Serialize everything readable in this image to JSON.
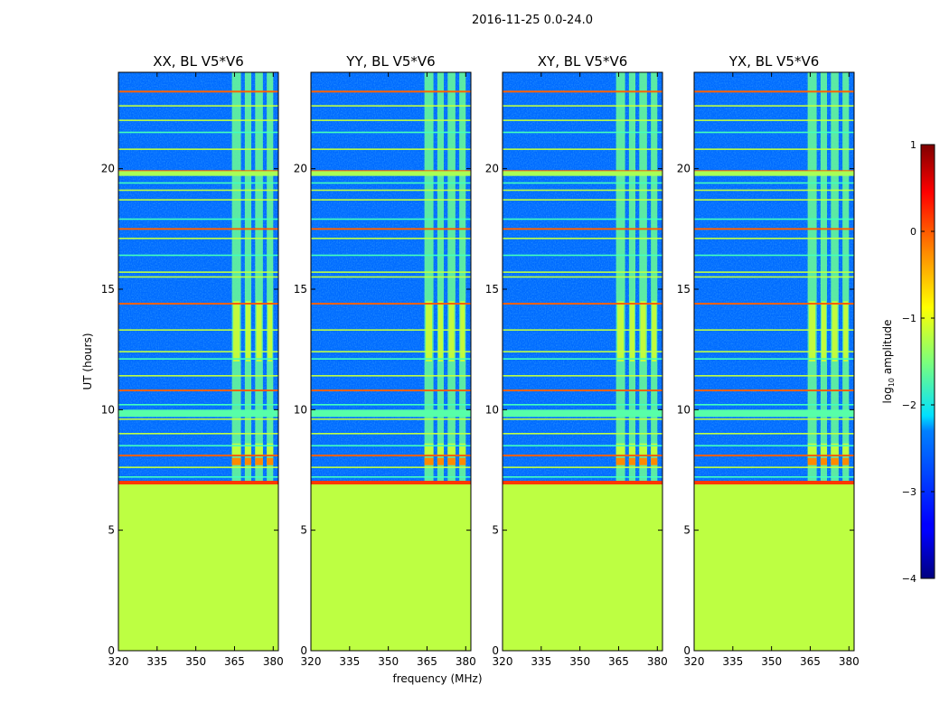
{
  "suptitle": "2016-11-25 0.0-24.0",
  "chart_data": {
    "type": "heatmap",
    "suptitle": "2016-11-25 0.0-24.0",
    "xlabel": "frequency (MHz)",
    "ylabel": "UT (hours)",
    "xlim": [
      320,
      382
    ],
    "ylim": [
      0,
      24
    ],
    "xticks": [
      320,
      335,
      350,
      365,
      380
    ],
    "yticks": [
      0,
      5,
      10,
      15,
      20
    ],
    "data_start_hour": 6.9,
    "fill_value_below_start": -1.2,
    "background_level": -2.85,
    "band_columns_mhz": [
      [
        364,
        367.5
      ],
      [
        369,
        371.5
      ],
      [
        373,
        376
      ],
      [
        377.5,
        380
      ]
    ],
    "hline_hours": [
      7.2,
      7.6,
      8.1,
      8.5,
      9.0,
      9.6,
      10.2,
      10.8,
      11.4,
      12.1,
      12.4,
      13.3,
      14.4,
      15.5,
      15.7,
      16.4,
      17.1,
      17.5,
      17.9,
      18.7,
      19.1,
      19.4,
      19.9,
      20.8,
      21.5,
      22.0,
      22.6,
      23.2
    ],
    "panels": [
      {
        "title": "XX, BL V5*V6",
        "polarization": "XX",
        "baseline": "V5*V6"
      },
      {
        "title": "YY, BL V5*V6",
        "polarization": "YY",
        "baseline": "V5*V6"
      },
      {
        "title": "XY, BL V5*V6",
        "polarization": "XY",
        "baseline": "V5*V6"
      },
      {
        "title": "YX, BL V5*V6",
        "polarization": "YX",
        "baseline": "V5*V6"
      }
    ],
    "colorbar": {
      "label": "log10 amplitude",
      "label_main": "log",
      "label_sub": "10",
      "label_rest": " amplitude",
      "range": [
        -4,
        1
      ],
      "ticks": [
        1,
        0,
        -1,
        -2,
        -3,
        -4
      ],
      "tick_labels": [
        "1",
        "0",
        "−1",
        "−2",
        "−3",
        "−4"
      ],
      "colormap": "jet"
    }
  }
}
